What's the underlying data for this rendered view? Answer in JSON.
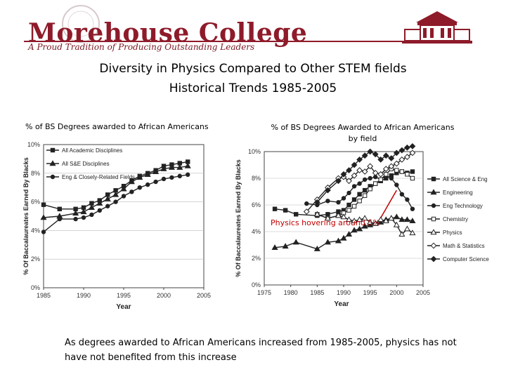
{
  "header": {
    "college_name": "Morehouse College",
    "tagline": "A Proud Tradition of Producing Outstanding Leaders",
    "brand_color": "#8e1b2a"
  },
  "slide": {
    "title_line1": "Diversity in Physics Compared to Other STEM fields",
    "title_line2": "Historical Trends 1985-2005",
    "left_subtitle": "% of BS Degrees awarded to African Americans",
    "right_subtitle_line1": "% of BS Degrees Awarded to African Americans",
    "right_subtitle_line2": "by field",
    "callout": "Physics hovering around 5%",
    "caption": "As degrees awarded to African Americans increased from 1985-2005, physics has not have not benefited from this increase"
  },
  "chart_data": [
    {
      "type": "line",
      "ylabel": "% Of Baccalaureates Earned By Blacks",
      "xlabel": "Year",
      "xlim": [
        1985,
        2005
      ],
      "ylim": [
        0,
        10
      ],
      "x_ticks": [
        "1985",
        "1990",
        "1995",
        "2000",
        "2005"
      ],
      "y_ticks": [
        "0%",
        "2%",
        "4%",
        "6%",
        "8%",
        "10%"
      ],
      "legend_position": "top-left",
      "x": [
        1985,
        1987,
        1989,
        1990,
        1991,
        1992,
        1993,
        1994,
        1995,
        1996,
        1997,
        1998,
        1999,
        2000,
        2001,
        2002,
        2003
      ],
      "series": [
        {
          "name": "All Academic Disciplines",
          "marker": "square",
          "values": [
            5.8,
            5.5,
            5.5,
            5.6,
            5.9,
            6.1,
            6.5,
            6.8,
            7.1,
            7.5,
            7.8,
            8.0,
            8.2,
            8.5,
            8.6,
            8.7,
            8.8
          ]
        },
        {
          "name": "All S&E Disciplines",
          "marker": "triangle",
          "values": [
            4.9,
            5.0,
            5.2,
            5.3,
            5.6,
            5.9,
            6.2,
            6.5,
            6.9,
            7.4,
            7.7,
            7.9,
            8.1,
            8.3,
            8.4,
            8.4,
            8.5
          ]
        },
        {
          "name": "Eng & Closely-Related Fields",
          "marker": "circle",
          "values": [
            3.9,
            4.8,
            4.8,
            4.9,
            5.1,
            5.4,
            5.7,
            6.0,
            6.4,
            6.7,
            7.0,
            7.2,
            7.4,
            7.6,
            7.7,
            7.8,
            7.9
          ]
        }
      ]
    },
    {
      "type": "line",
      "ylabel": "% Of Baccalaureates Earned By Blacks",
      "xlabel": "Year",
      "xlim": [
        1975,
        2005
      ],
      "ylim": [
        0,
        10
      ],
      "x_ticks": [
        "1975",
        "1980",
        "1985",
        "1990",
        "1995",
        "2000",
        "2005"
      ],
      "y_ticks": [
        "0%",
        "2%",
        "4%",
        "6%",
        "8%",
        "10%"
      ],
      "legend_position": "right",
      "series": [
        {
          "name": "All Science & Eng",
          "marker": "square",
          "x": [
            1977,
            1979,
            1981,
            1985,
            1987,
            1989,
            1990,
            1991,
            1992,
            1993,
            1994,
            1995,
            1996,
            1997,
            1998,
            1999,
            2000,
            2001,
            2002,
            2003
          ],
          "values": [
            5.7,
            5.6,
            5.3,
            5.2,
            5.3,
            5.5,
            5.6,
            6.0,
            6.4,
            6.8,
            7.1,
            7.4,
            7.6,
            7.8,
            8.0,
            8.2,
            8.4,
            8.5,
            8.4,
            8.5
          ]
        },
        {
          "name": "Engineering",
          "marker": "triangle",
          "x": [
            1977,
            1979,
            1981,
            1985,
            1987,
            1989,
            1990,
            1991,
            1992,
            1993,
            1994,
            1995,
            1996,
            1997,
            1998,
            1999,
            2000,
            2001,
            2002,
            2003
          ],
          "values": [
            2.8,
            2.9,
            3.2,
            2.7,
            3.2,
            3.3,
            3.5,
            3.8,
            4.1,
            4.2,
            4.4,
            4.5,
            4.6,
            4.7,
            4.9,
            5.0,
            5.1,
            4.9,
            4.9,
            4.8
          ]
        },
        {
          "name": "Eng Technology",
          "marker": "circle",
          "x": [
            1983,
            1985,
            1987,
            1989,
            1990,
            1991,
            1992,
            1993,
            1994,
            1995,
            1996,
            1997,
            1998,
            1999,
            2000,
            2001,
            2002,
            2003
          ],
          "values": [
            6.1,
            6.0,
            6.3,
            6.2,
            6.5,
            6.9,
            7.4,
            7.6,
            7.9,
            8.0,
            8.1,
            7.9,
            8.2,
            8.0,
            7.5,
            6.8,
            6.4,
            5.7
          ]
        },
        {
          "name": "Chemistry",
          "marker": "square-open",
          "x": [
            1985,
            1987,
            1989,
            1990,
            1991,
            1992,
            1993,
            1994,
            1995,
            1996,
            1997,
            1998,
            1999,
            2000,
            2001,
            2002,
            2003
          ],
          "values": [
            5.3,
            5.0,
            5.2,
            5.4,
            5.6,
            5.9,
            6.3,
            6.7,
            7.2,
            7.6,
            7.9,
            8.3,
            8.7,
            8.6,
            8.5,
            8.3,
            8.0
          ]
        },
        {
          "name": "Physics",
          "marker": "triangle-open",
          "x": [
            1985,
            1987,
            1989,
            1990,
            1991,
            1992,
            1993,
            1994,
            1995,
            1996,
            1997,
            1998,
            1999,
            2000,
            2001,
            2002,
            2003
          ],
          "values": [
            5.3,
            5.0,
            5.2,
            5.1,
            4.9,
            4.8,
            4.9,
            5.0,
            4.7,
            4.6,
            4.9,
            4.8,
            5.0,
            4.5,
            3.8,
            4.2,
            3.9
          ]
        },
        {
          "name": "Math & Statistics",
          "marker": "diamond-open",
          "x": [
            1983,
            1985,
            1987,
            1989,
            1990,
            1991,
            1992,
            1993,
            1994,
            1995,
            1996,
            1997,
            1998,
            1999,
            2000,
            2001,
            2002,
            2003
          ],
          "values": [
            5.5,
            6.4,
            7.3,
            8.0,
            8.1,
            7.8,
            8.2,
            8.6,
            8.5,
            8.9,
            8.4,
            8.3,
            8.7,
            8.9,
            9.1,
            9.4,
            9.6,
            9.9
          ]
        },
        {
          "name": "Computer Science",
          "marker": "diamond",
          "x": [
            1985,
            1987,
            1989,
            1990,
            1991,
            1992,
            1993,
            1994,
            1995,
            1996,
            1997,
            1998,
            1999,
            2000,
            2001,
            2002,
            2003
          ],
          "values": [
            6.2,
            7.1,
            7.8,
            8.3,
            8.6,
            9.0,
            9.4,
            9.7,
            10.0,
            9.8,
            9.4,
            9.7,
            9.5,
            9.9,
            10.1,
            10.3,
            10.4
          ]
        }
      ]
    }
  ]
}
